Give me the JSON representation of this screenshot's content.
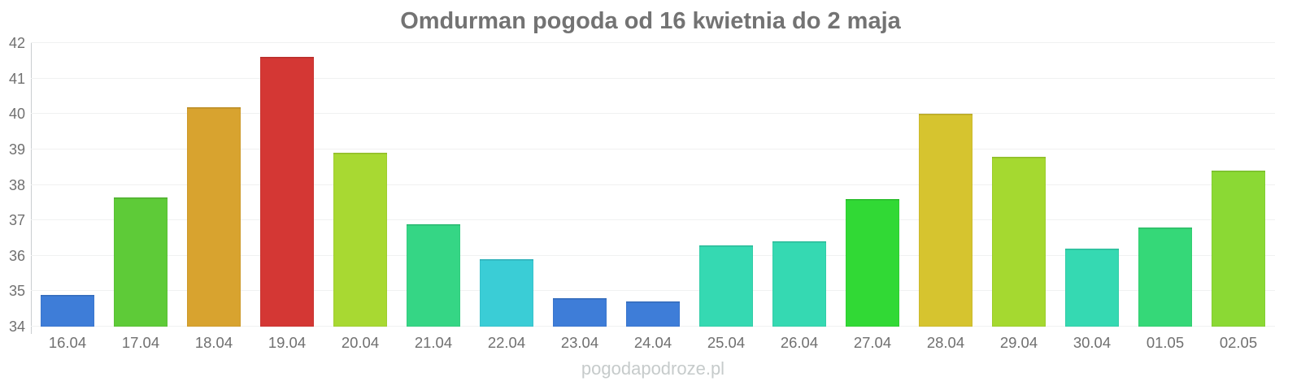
{
  "watermark": "pogodapodroze.pl",
  "colors": {
    "background": "#ffffff",
    "title_text": "#737373",
    "axis_label_text": "#707070",
    "gridline": "#f0f1f1",
    "axis_line": "#c9cdd0",
    "watermark_text": "#c6cbcb"
  },
  "chart_data": {
    "type": "bar",
    "title": "Omdurman pogoda od 16 kwietnia do 2 maja",
    "categories": [
      "16.04",
      "17.04",
      "18.04",
      "19.04",
      "20.04",
      "21.04",
      "22.04",
      "23.04",
      "24.04",
      "25.04",
      "26.04",
      "27.04",
      "28.04",
      "29.04",
      "30.04",
      "01.05",
      "02.05"
    ],
    "values": [
      34.9,
      37.65,
      40.2,
      41.6,
      38.9,
      36.9,
      35.9,
      34.8,
      34.7,
      36.3,
      36.4,
      37.6,
      40.0,
      38.8,
      36.2,
      36.8,
      38.4
    ],
    "bar_colors": [
      "#3e7dd8",
      "#5ecb38",
      "#d8a32f",
      "#d43734",
      "#a8d932",
      "#35d685",
      "#3acdd6",
      "#3e7dd8",
      "#3e7dd8",
      "#35d9b2",
      "#35d9b2",
      "#31d935",
      "#d6c42f",
      "#a5d930",
      "#35d9b2",
      "#35d878",
      "#8bd934"
    ],
    "xlabel": "",
    "ylabel": "",
    "ylim": [
      34,
      42
    ],
    "yticks": [
      34,
      35,
      36,
      37,
      38,
      39,
      40,
      41,
      42
    ],
    "grid": true,
    "legend": false
  }
}
